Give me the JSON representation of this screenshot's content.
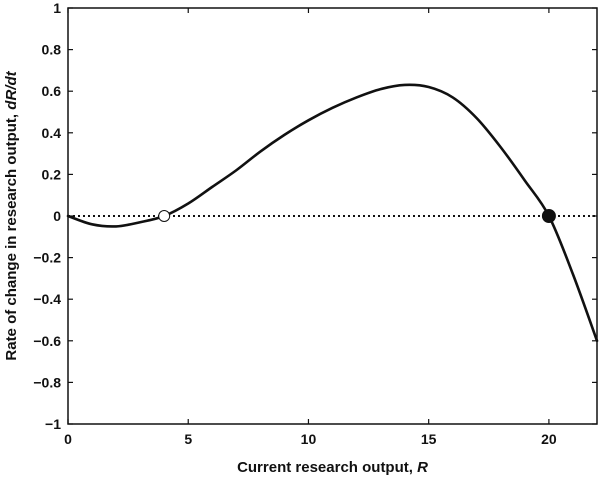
{
  "chart_data": {
    "type": "line",
    "xlabel": "Current research output, ",
    "xlabel_var": "R",
    "ylabel": "Rate of change in research output, ",
    "ylabel_var": "dR/dt",
    "xlim": [
      0,
      22
    ],
    "ylim": [
      -1,
      1
    ],
    "x_ticks": [
      0,
      5,
      10,
      15,
      20
    ],
    "y_ticks": [
      -1,
      -0.8,
      -0.6,
      -0.4,
      -0.2,
      0,
      0.2,
      0.4,
      0.6,
      0.8,
      1
    ],
    "x_tick_labels": [
      "0",
      "5",
      "10",
      "15",
      "20"
    ],
    "y_tick_labels": [
      "−1",
      "−0.8",
      "−0.6",
      "−0.4",
      "−0.2",
      "0",
      "0.2",
      "0.4",
      "0.6",
      "0.8",
      "1"
    ],
    "grid": false,
    "series": [
      {
        "x": [
          0,
          1,
          2,
          3,
          4,
          5,
          6,
          7,
          8,
          9,
          10,
          11,
          12,
          13,
          14,
          15,
          16,
          17,
          18,
          19,
          20,
          21,
          22
        ],
        "y": [
          0,
          -0.04,
          -0.05,
          -0.03,
          0,
          0.06,
          0.14,
          0.22,
          0.31,
          0.39,
          0.46,
          0.52,
          0.57,
          0.61,
          0.63,
          0.62,
          0.57,
          0.47,
          0.33,
          0.17,
          0,
          -0.28,
          -0.6
        ],
        "color": "#111111",
        "style": "solid"
      }
    ],
    "reference_line": {
      "y": 0,
      "style": "dotted",
      "color": "#111111"
    },
    "equilibria": [
      {
        "x": 4,
        "y": 0,
        "marker": "open-circle"
      },
      {
        "x": 20,
        "y": 0,
        "marker": "filled-circle"
      }
    ]
  }
}
